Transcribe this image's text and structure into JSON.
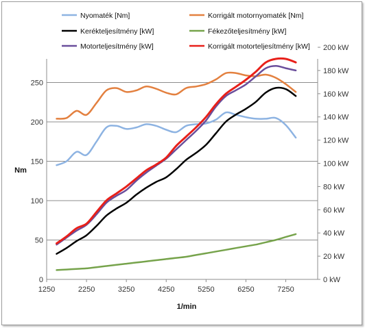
{
  "chart_data": {
    "type": "line",
    "xlabel": "1/min",
    "ylabel_left": "Nm",
    "ylabel_right": "",
    "xlim": [
      1250,
      8050
    ],
    "xticks": [
      1250,
      2250,
      3250,
      4250,
      5250,
      6250,
      7250
    ],
    "ylim_left": [
      0,
      280
    ],
    "yticks_left": [
      0,
      50,
      100,
      150,
      200,
      250
    ],
    "ylim_right": [
      0,
      190
    ],
    "yticks_right": [
      0,
      20,
      40,
      60,
      80,
      100,
      120,
      140,
      160,
      180,
      200
    ],
    "right_unit": "kW",
    "grid": "horizontal",
    "legend_position": "top",
    "series": [
      {
        "name": "Nyomaték [Nm]",
        "axis": "left",
        "color": "#8db3e2",
        "x": [
          1500,
          1750,
          2000,
          2250,
          2500,
          2750,
          3000,
          3250,
          3500,
          3750,
          4000,
          4250,
          4500,
          4750,
          5000,
          5250,
          5500,
          5750,
          6000,
          6250,
          6500,
          6750,
          7000,
          7250,
          7500
        ],
        "y": [
          145,
          150,
          162,
          158,
          175,
          193,
          195,
          191,
          193,
          197,
          195,
          190,
          187,
          195,
          197,
          198,
          203,
          212,
          209,
          206,
          204,
          204,
          205,
          196,
          180
        ]
      },
      {
        "name": "Korrigált motornyomaték [Nm]",
        "axis": "left",
        "color": "#e3803f",
        "x": [
          1500,
          1750,
          2000,
          2250,
          2500,
          2750,
          3000,
          3250,
          3500,
          3750,
          4000,
          4250,
          4500,
          4750,
          5000,
          5250,
          5500,
          5750,
          6000,
          6250,
          6500,
          6750,
          7000,
          7250,
          7500
        ],
        "y": [
          204,
          205,
          214,
          209,
          224,
          240,
          243,
          238,
          240,
          245,
          242,
          237,
          235,
          243,
          245,
          248,
          254,
          262,
          262,
          259,
          258,
          260,
          256,
          248,
          238
        ]
      },
      {
        "name": "Kerékteljesítmény [kW]",
        "axis": "right",
        "color": "#000000",
        "x": [
          1500,
          1750,
          2000,
          2250,
          2500,
          2750,
          3000,
          3250,
          3500,
          3750,
          4000,
          4250,
          4500,
          4750,
          5000,
          5250,
          5500,
          5750,
          6000,
          6250,
          6500,
          6750,
          7000,
          7250,
          7500
        ],
        "y": [
          22,
          27,
          33,
          38,
          46,
          55,
          61,
          66,
          73,
          79,
          84,
          88,
          95,
          103,
          109,
          116,
          126,
          136,
          142,
          147,
          153,
          161,
          165,
          164,
          158
        ]
      },
      {
        "name": "Fékezőteljesítmény [kW]",
        "axis": "right",
        "color": "#76a34b",
        "x": [
          1500,
          1750,
          2000,
          2250,
          2500,
          2750,
          3000,
          3250,
          3500,
          3750,
          4000,
          4250,
          4500,
          4750,
          5000,
          5250,
          5500,
          5750,
          6000,
          6250,
          6500,
          6750,
          7000,
          7250,
          7500
        ],
        "y": [
          8,
          8.5,
          9,
          9.5,
          10.5,
          11.5,
          12.5,
          13.5,
          14.5,
          15.5,
          16.5,
          17.5,
          18.5,
          19.5,
          21,
          22.5,
          24,
          25.5,
          27,
          28.5,
          30,
          32,
          34,
          36.5,
          39
        ]
      },
      {
        "name": "Motorteljesítmény [kW]",
        "axis": "right",
        "color": "#6a4e9b",
        "x": [
          1500,
          1750,
          2000,
          2250,
          2500,
          2750,
          3000,
          3250,
          3500,
          3750,
          4000,
          4250,
          4500,
          4750,
          5000,
          5250,
          5500,
          5750,
          6000,
          6250,
          6500,
          6750,
          7000,
          7250,
          7500
        ],
        "y": [
          30,
          36,
          42,
          47,
          56,
          66,
          72,
          77,
          85,
          92,
          98,
          104,
          112,
          120,
          128,
          137,
          149,
          158,
          163,
          168,
          175,
          182,
          184,
          182,
          180
        ]
      },
      {
        "name": "Korrigált motorteljesítmény [kW]",
        "axis": "right",
        "color": "#e8201a",
        "x": [
          1500,
          1750,
          2000,
          2250,
          2500,
          2750,
          3000,
          3250,
          3500,
          3750,
          4000,
          4250,
          4500,
          4750,
          5000,
          5250,
          5500,
          5750,
          6000,
          6250,
          6500,
          6750,
          7000,
          7250,
          7500
        ],
        "y": [
          31,
          37,
          44,
          48,
          58,
          68,
          74,
          80,
          87,
          94,
          99,
          105,
          115,
          123,
          131,
          140,
          151,
          160,
          166,
          172,
          179,
          187,
          190,
          190,
          187
        ]
      }
    ]
  }
}
